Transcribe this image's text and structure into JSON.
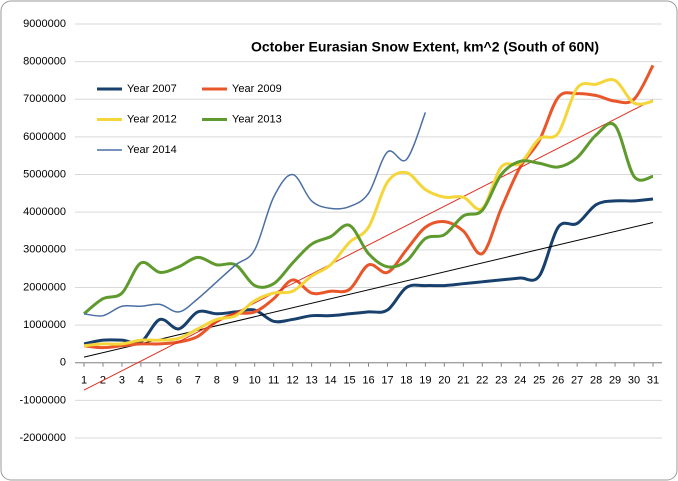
{
  "chart_data": {
    "type": "line",
    "title": "October Eurasian Snow Extent, km^2 (South of 60N)",
    "categories": [
      "1",
      "2",
      "3",
      "4",
      "5",
      "6",
      "7",
      "8",
      "9",
      "10",
      "11",
      "12",
      "13",
      "14",
      "15",
      "16",
      "17",
      "18",
      "19",
      "20",
      "21",
      "22",
      "23",
      "24",
      "25",
      "26",
      "27",
      "28",
      "29",
      "30",
      "31"
    ],
    "ylim": [
      -2000000,
      9000000
    ],
    "yticks": [
      -2000000,
      -1000000,
      0,
      1000000,
      2000000,
      3000000,
      4000000,
      5000000,
      6000000,
      7000000,
      8000000,
      9000000
    ],
    "grid": true,
    "smooth": true,
    "legend": "top-left",
    "series": [
      {
        "name": "Year 2007",
        "color": "#17406d",
        "width": 3,
        "trendline": "#000000",
        "values": [
          500000,
          600000,
          600000,
          550000,
          1150000,
          900000,
          1350000,
          1300000,
          1350000,
          1400000,
          1100000,
          1150000,
          1250000,
          1250000,
          1300000,
          1350000,
          1400000,
          2000000,
          2050000,
          2050000,
          2100000,
          2150000,
          2200000,
          2250000,
          2300000,
          3600000,
          3700000,
          4200000,
          4300000,
          4300000,
          4350000
        ]
      },
      {
        "name": "Year 2009",
        "color": "#e8562a",
        "width": 3,
        "trendline": "#e03020",
        "values": [
          450000,
          400000,
          450000,
          500000,
          500000,
          550000,
          700000,
          1100000,
          1300000,
          1350000,
          1700000,
          2200000,
          1850000,
          1900000,
          1950000,
          2600000,
          2400000,
          3000000,
          3600000,
          3750000,
          3500000,
          2900000,
          4100000,
          5200000,
          5900000,
          7050000,
          7150000,
          7100000,
          6950000,
          7000000,
          7900000
        ]
      },
      {
        "name": "Year 2012",
        "color": "#f5d63a",
        "width": 3,
        "values": [
          450000,
          500000,
          500000,
          600000,
          600000,
          650000,
          900000,
          1150000,
          1250000,
          1650000,
          1850000,
          1900000,
          2300000,
          2600000,
          3200000,
          3600000,
          4800000,
          5050000,
          4600000,
          4400000,
          4400000,
          4100000,
          5200000,
          5300000,
          5950000,
          6100000,
          7300000,
          7400000,
          7500000,
          6900000,
          6950000
        ]
      },
      {
        "name": "Year 2013",
        "color": "#5f9a2e",
        "width": 3,
        "values": [
          1300000,
          1700000,
          1850000,
          2650000,
          2400000,
          2550000,
          2800000,
          2600000,
          2600000,
          2050000,
          2100000,
          2650000,
          3150000,
          3350000,
          3650000,
          2900000,
          2550000,
          2700000,
          3300000,
          3400000,
          3900000,
          4050000,
          5000000,
          5350000,
          5300000,
          5200000,
          5450000,
          6050000,
          6300000,
          4950000,
          4950000
        ]
      },
      {
        "name": "Year 2014",
        "color": "#4a6fa5",
        "width": 1.5,
        "values": [
          1300000,
          1250000,
          1500000,
          1500000,
          1550000,
          1350000,
          1700000,
          2150000,
          2600000,
          3000000,
          4400000,
          5000000,
          4300000,
          4100000,
          4150000,
          4500000,
          5600000,
          5400000,
          6650000,
          null,
          null,
          null,
          null,
          null,
          null,
          null,
          null,
          null,
          null,
          null,
          null
        ]
      }
    ]
  }
}
